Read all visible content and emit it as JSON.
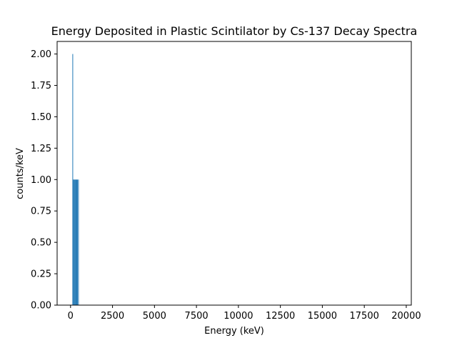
{
  "chart_data": {
    "type": "bar",
    "title": "Energy Deposited in Plastic Scintilator by Cs-137 Decay Spectra",
    "xlabel": "Energy (keV)",
    "ylabel": "counts/keV",
    "xlim": [
      -800,
      20300
    ],
    "ylim": [
      0,
      2.1
    ],
    "x_ticks": [
      0,
      2500,
      5000,
      7500,
      10000,
      12500,
      15000,
      17500,
      20000
    ],
    "y_ticks": [
      0.0,
      0.25,
      0.5,
      0.75,
      1.0,
      1.25,
      1.5,
      1.75,
      2.0
    ],
    "x_tick_labels": [
      "0",
      "2500",
      "5000",
      "7500",
      "10000",
      "12500",
      "15000",
      "17500",
      "20000"
    ],
    "y_tick_labels": [
      "0.00",
      "0.25",
      "0.50",
      "0.75",
      "1.00",
      "1.25",
      "1.50",
      "1.75",
      "2.00"
    ],
    "bar_width": 20,
    "bar_color": "#1f77b4",
    "x": [
      120,
      160,
      200,
      240,
      280,
      320,
      360,
      400,
      460
    ],
    "values": [
      2,
      1,
      1,
      1,
      1,
      1,
      1,
      1,
      1
    ],
    "grid": false,
    "legend": "none"
  }
}
